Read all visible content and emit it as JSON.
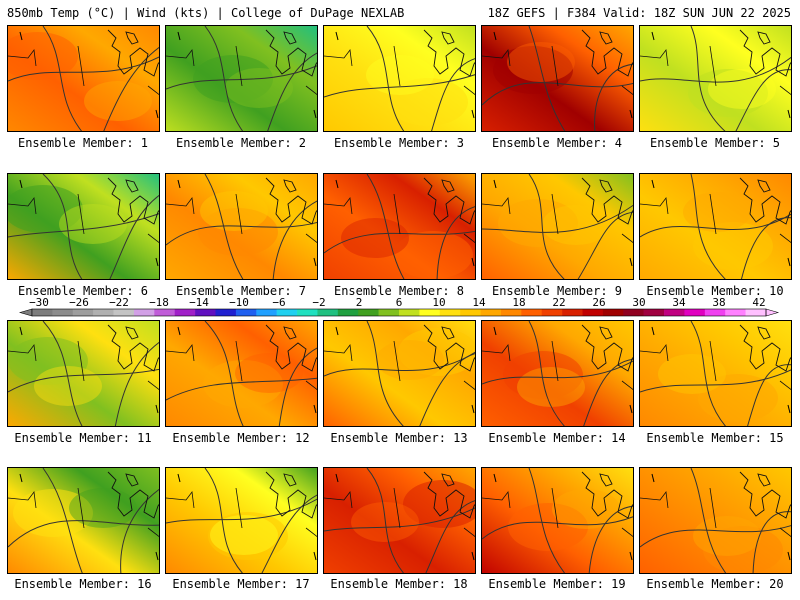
{
  "header": {
    "left": "850mb Temp (°C) | Wind (kts) | College of DuPage NEXLAB",
    "right": "18Z GEFS | F384 Valid: 18Z SUN JUN 22 2025"
  },
  "colorbar": {
    "labels": [
      "−30",
      "−26",
      "−22",
      "−18",
      "−14",
      "−10",
      "−6",
      "−2",
      "2",
      "6",
      "10",
      "14",
      "18",
      "22",
      "26",
      "30",
      "34",
      "38",
      "42"
    ],
    "colors": [
      "#7d7d7d",
      "#8c8c8c",
      "#9e9e9e",
      "#b0b0b0",
      "#c3c3c3",
      "#d2a0e6",
      "#c05cd8",
      "#a020c8",
      "#6010c0",
      "#2020d0",
      "#2060f0",
      "#20a0ff",
      "#20d0f0",
      "#20e0c0",
      "#20c080",
      "#20a040",
      "#40a020",
      "#80c020",
      "#c0e020",
      "#ffff20",
      "#ffe010",
      "#ffc800",
      "#ffa800",
      "#ff8800",
      "#ff6000",
      "#f04000",
      "#d82000",
      "#c00000",
      "#a00000",
      "#900020",
      "#a00040",
      "#c00080",
      "#e000c0",
      "#f040f0",
      "#ff80ff",
      "#ffc0ff"
    ]
  },
  "members": [
    {
      "label": "Ensemble Member: 1",
      "colors": [
        "#ff8800",
        "#ff6000",
        "#ffa800",
        "#ff8800"
      ]
    },
    {
      "label": "Ensemble Member: 2",
      "colors": [
        "#c0e020",
        "#40a020",
        "#80c020",
        "#20c080"
      ]
    },
    {
      "label": "Ensemble Member: 3",
      "colors": [
        "#ffc800",
        "#ffe010",
        "#ffff20",
        "#c0e020"
      ]
    },
    {
      "label": "Ensemble Member: 4",
      "colors": [
        "#d82000",
        "#a00000",
        "#ff6000",
        "#ffa800"
      ]
    },
    {
      "label": "Ensemble Member: 5",
      "colors": [
        "#ffe010",
        "#c0e020",
        "#ffff20",
        "#c0e020"
      ]
    },
    {
      "label": "Ensemble Member: 6",
      "colors": [
        "#ffa800",
        "#40a020",
        "#c0e020",
        "#20c080"
      ]
    },
    {
      "label": "Ensemble Member: 7",
      "colors": [
        "#ffa800",
        "#ff8800",
        "#ffc800",
        "#ffa800"
      ]
    },
    {
      "label": "Ensemble Member: 8",
      "colors": [
        "#f04000",
        "#ff6000",
        "#d82000",
        "#ffa800"
      ]
    },
    {
      "label": "Ensemble Member: 9",
      "colors": [
        "#ff6000",
        "#ffa800",
        "#ffc800",
        "#80c020"
      ]
    },
    {
      "label": "Ensemble Member: 10",
      "colors": [
        "#ffa800",
        "#ffc800",
        "#ffa800",
        "#ff8800"
      ]
    },
    {
      "label": "Ensemble Member: 11",
      "colors": [
        "#ffa800",
        "#80c020",
        "#ffe010",
        "#c0e020"
      ]
    },
    {
      "label": "Ensemble Member: 12",
      "colors": [
        "#ff8800",
        "#ffa800",
        "#ff6000",
        "#ffa800"
      ]
    },
    {
      "label": "Ensemble Member: 13",
      "colors": [
        "#ff6000",
        "#ffc800",
        "#ffa800",
        "#ffe010"
      ]
    },
    {
      "label": "Ensemble Member: 14",
      "colors": [
        "#ff6000",
        "#f04000",
        "#ffa800",
        "#ffc800"
      ]
    },
    {
      "label": "Ensemble Member: 15",
      "colors": [
        "#ff8800",
        "#ffa800",
        "#ffc800",
        "#ffe010"
      ]
    },
    {
      "label": "Ensemble Member: 16",
      "colors": [
        "#ff8800",
        "#ffe010",
        "#40a020",
        "#80c020"
      ]
    },
    {
      "label": "Ensemble Member: 17",
      "colors": [
        "#ff8800",
        "#ffc800",
        "#ffff20",
        "#40a020"
      ]
    },
    {
      "label": "Ensemble Member: 18",
      "colors": [
        "#f04000",
        "#d82000",
        "#ff6000",
        "#ffa800"
      ]
    },
    {
      "label": "Ensemble Member: 19",
      "colors": [
        "#c00000",
        "#ff6000",
        "#ffa800",
        "#ffe010"
      ]
    },
    {
      "label": "Ensemble Member: 20",
      "colors": [
        "#ff6000",
        "#ff8800",
        "#ffa800",
        "#ffc800"
      ]
    }
  ]
}
